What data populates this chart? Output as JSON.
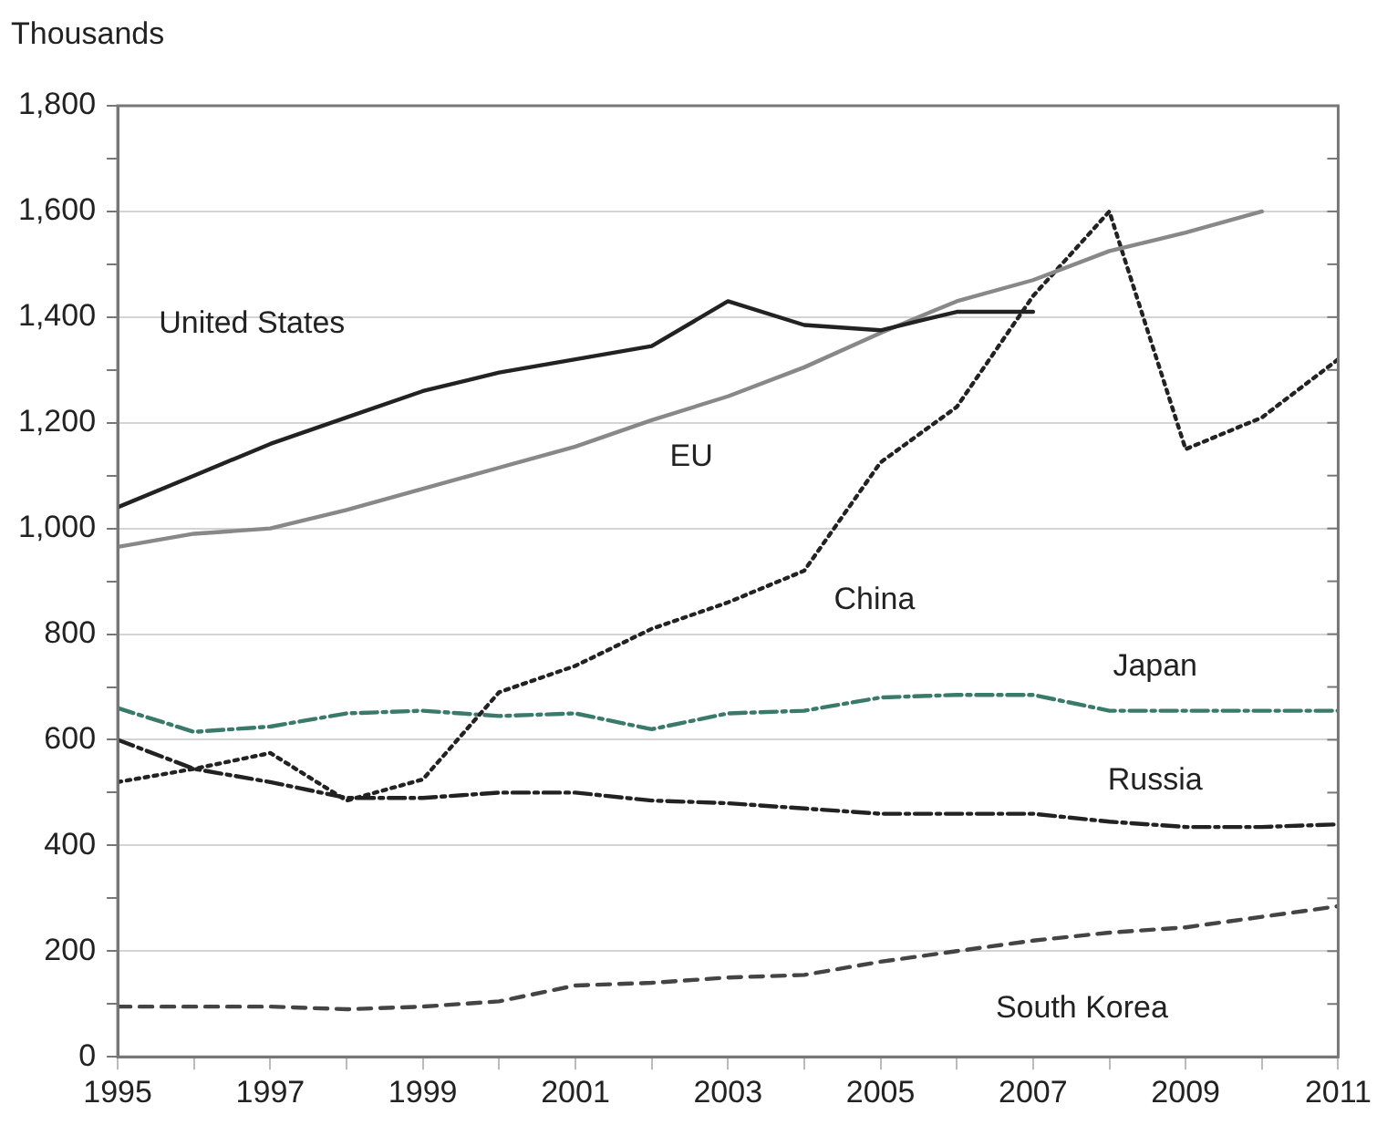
{
  "chart_data": {
    "type": "line",
    "ylabel": "Thousands",
    "x": [
      1995,
      1996,
      1997,
      1998,
      1999,
      2000,
      2001,
      2002,
      2003,
      2004,
      2005,
      2006,
      2007,
      2008,
      2009,
      2010,
      2011
    ],
    "xlim": [
      1995,
      2011
    ],
    "xticks": [
      1995,
      {
        "value": 1996,
        "label": null
      },
      1997,
      {
        "value": 1998,
        "label": null
      },
      1999,
      {
        "value": 2000,
        "label": null
      },
      2001,
      {
        "value": 2002,
        "label": null
      },
      2003,
      {
        "value": 2004,
        "label": null
      },
      2005,
      {
        "value": 2006,
        "label": null
      },
      2007,
      {
        "value": 2008,
        "label": null
      },
      2009,
      {
        "value": 2010,
        "label": null
      },
      2011
    ],
    "ylim": [
      0,
      1800
    ],
    "yticks": [
      0,
      {
        "value": 100,
        "label": null
      },
      {
        "value": 200,
        "label": "200"
      },
      {
        "value": 300,
        "label": null
      },
      {
        "value": 400,
        "label": "400"
      },
      {
        "value": 500,
        "label": null
      },
      {
        "value": 600,
        "label": "600"
      },
      {
        "value": 700,
        "label": null
      },
      {
        "value": 800,
        "label": "800"
      },
      {
        "value": 900,
        "label": null
      },
      {
        "value": 1000,
        "label": "1,000"
      },
      {
        "value": 1100,
        "label": null
      },
      {
        "value": 1200,
        "label": "1,200"
      },
      {
        "value": 1300,
        "label": null
      },
      {
        "value": 1400,
        "label": "1,400"
      },
      {
        "value": 1500,
        "label": null
      },
      {
        "value": 1600,
        "label": "1,600"
      },
      {
        "value": 1700,
        "label": null
      },
      {
        "value": 1800,
        "label": "1,800"
      }
    ],
    "grid": "y",
    "legend": false,
    "marker": "none",
    "series": [
      {
        "name": "United States",
        "color": "#222222",
        "line_style": "solid",
        "values": [
          1040,
          1100,
          1160,
          1210,
          1260,
          1295,
          1320,
          1345,
          1430,
          1385,
          1375,
          1410,
          1410,
          null,
          null,
          null,
          null
        ]
      },
      {
        "name": "EU",
        "color": "#888888",
        "line_style": "solid",
        "values": [
          965,
          990,
          1000,
          1035,
          1075,
          1115,
          1155,
          1205,
          1250,
          1305,
          1370,
          1430,
          1470,
          1525,
          1560,
          1600,
          null
        ]
      },
      {
        "name": "China",
        "color": "#222222",
        "line_style": "dotted",
        "values": [
          520,
          545,
          575,
          485,
          525,
          690,
          740,
          810,
          860,
          920,
          1125,
          1230,
          1440,
          1600,
          1150,
          1210,
          1320
        ]
      },
      {
        "name": "Japan",
        "color": "#3a7a6a",
        "line_style": "dashdot",
        "values": [
          660,
          615,
          625,
          650,
          655,
          645,
          650,
          620,
          650,
          655,
          680,
          685,
          685,
          655,
          655,
          655,
          655
        ]
      },
      {
        "name": "Russia",
        "color": "#222222",
        "line_style": "dashdot",
        "values": [
          600,
          545,
          520,
          490,
          490,
          500,
          500,
          485,
          480,
          470,
          460,
          460,
          460,
          445,
          435,
          435,
          440
        ]
      },
      {
        "name": "South Korea",
        "color": "#444444",
        "line_style": "dashed",
        "values": [
          95,
          95,
          95,
          90,
          95,
          105,
          135,
          140,
          150,
          155,
          180,
          200,
          220,
          235,
          245,
          265,
          285
        ]
      }
    ]
  }
}
